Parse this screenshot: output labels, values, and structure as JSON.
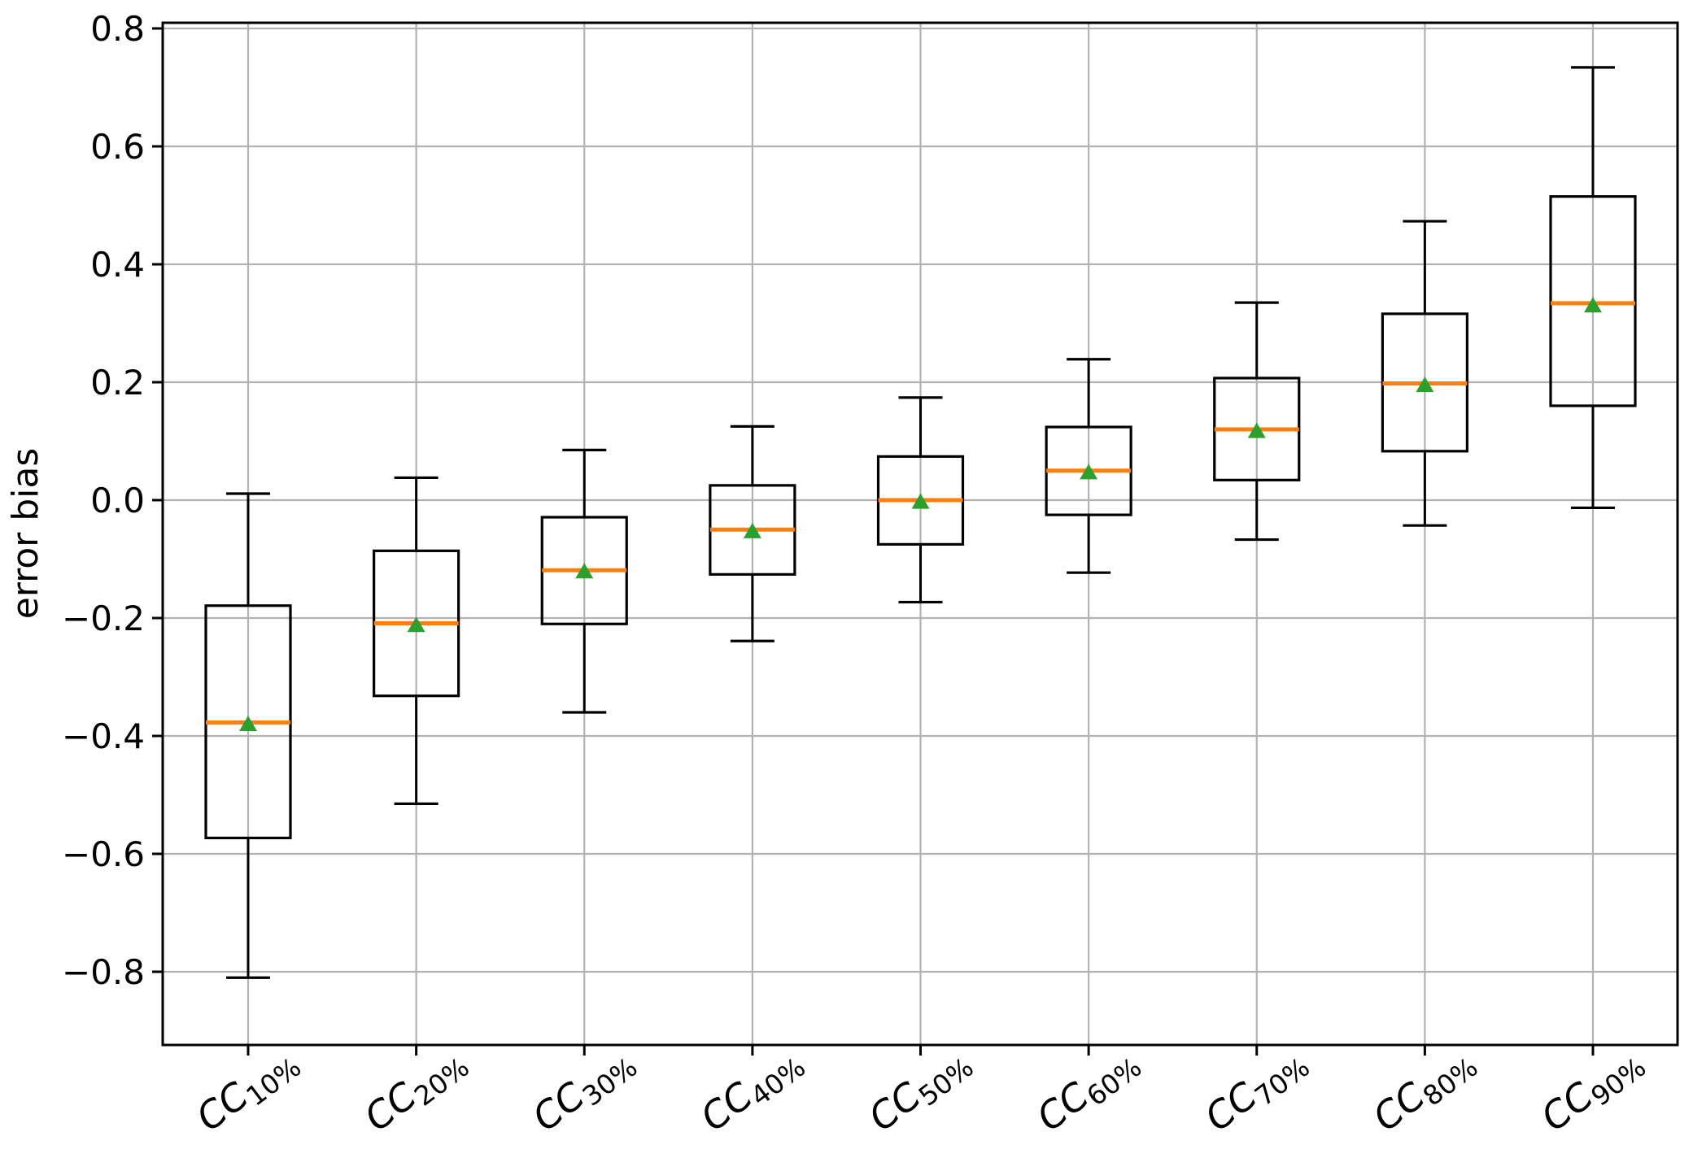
{
  "figure": {
    "background": "#ffffff"
  },
  "chart_data": {
    "type": "boxplot",
    "title": "",
    "xlabel": "",
    "ylabel": "error bias",
    "grid": true,
    "legend_position": "none",
    "ylim": [
      -0.92,
      0.81
    ],
    "yticks": [
      0.8,
      0.6,
      0.4,
      0.2,
      0.0,
      -0.2,
      -0.4,
      -0.6,
      -0.8
    ],
    "ytick_labels": [
      "0.8",
      "0.6",
      "0.4",
      "0.2",
      "0.0",
      "−0.2",
      "−0.4",
      "−0.6",
      "−0.8"
    ],
    "categories": [
      "CC10%",
      "CC20%",
      "CC30%",
      "CC40%",
      "CC50%",
      "CC60%",
      "CC70%",
      "CC80%",
      "CC90%"
    ],
    "colors": {
      "box_line": "#000000",
      "whisker": "#000000",
      "median": "#ff7f0e",
      "mean_marker": "#2ca02c",
      "grid": "#b2b2b2",
      "spine": "#000000",
      "background": "#ffffff"
    },
    "marker_shapes": {
      "mean": "triangle-up-icon"
    },
    "boxes": [
      {
        "label": "CC10%",
        "label_base": "CC",
        "label_sub": "10%",
        "whisker_low": -0.81,
        "q1": -0.573,
        "median": -0.377,
        "mean": -0.38,
        "q3": -0.179,
        "whisker_high": 0.011
      },
      {
        "label": "CC20%",
        "label_base": "CC",
        "label_sub": "20%",
        "whisker_low": -0.515,
        "q1": -0.332,
        "median": -0.209,
        "mean": -0.212,
        "q3": -0.086,
        "whisker_high": 0.038
      },
      {
        "label": "CC30%",
        "label_base": "CC",
        "label_sub": "30%",
        "whisker_low": -0.36,
        "q1": -0.21,
        "median": -0.119,
        "mean": -0.121,
        "q3": -0.029,
        "whisker_high": 0.085
      },
      {
        "label": "CC40%",
        "label_base": "CC",
        "label_sub": "40%",
        "whisker_low": -0.239,
        "q1": -0.126,
        "median": -0.05,
        "mean": -0.053,
        "q3": 0.025,
        "whisker_high": 0.125
      },
      {
        "label": "CC50%",
        "label_base": "CC",
        "label_sub": "50%",
        "whisker_low": -0.173,
        "q1": -0.075,
        "median": 0.0,
        "mean": -0.003,
        "q3": 0.074,
        "whisker_high": 0.174
      },
      {
        "label": "CC60%",
        "label_base": "CC",
        "label_sub": "60%",
        "whisker_low": -0.123,
        "q1": -0.025,
        "median": 0.05,
        "mean": 0.047,
        "q3": 0.124,
        "whisker_high": 0.239
      },
      {
        "label": "CC70%",
        "label_base": "CC",
        "label_sub": "70%",
        "whisker_low": -0.067,
        "q1": 0.034,
        "median": 0.12,
        "mean": 0.117,
        "q3": 0.207,
        "whisker_high": 0.335
      },
      {
        "label": "CC80%",
        "label_base": "CC",
        "label_sub": "80%",
        "whisker_low": -0.043,
        "q1": 0.083,
        "median": 0.198,
        "mean": 0.195,
        "q3": 0.316,
        "whisker_high": 0.473
      },
      {
        "label": "CC90%",
        "label_base": "CC",
        "label_sub": "90%",
        "whisker_low": -0.013,
        "q1": 0.16,
        "median": 0.334,
        "mean": 0.33,
        "q3": 0.515,
        "whisker_high": 0.734
      }
    ]
  }
}
